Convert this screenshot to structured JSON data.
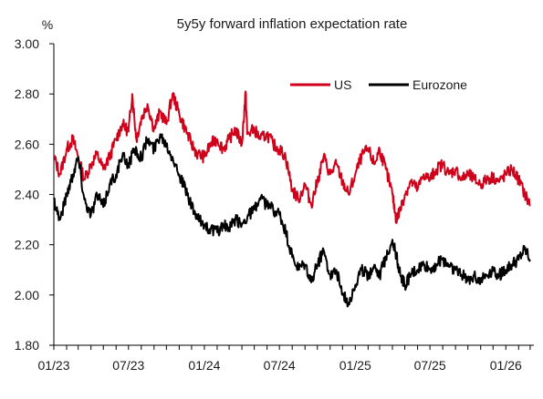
{
  "chart_data": {
    "type": "line",
    "title": "5y5y forward inflation expectation rate",
    "ylabel": "%",
    "xlabel": "",
    "ylim": [
      1.8,
      3.0
    ],
    "yticks": [
      "3.00",
      "2.80",
      "2.60",
      "2.40",
      "2.20",
      "2.00",
      "1.80"
    ],
    "xtick_labels": [
      "01/23",
      "07/23",
      "01/24",
      "07/24",
      "01/25",
      "07/25",
      "01/26"
    ],
    "legend_position": "top-right",
    "grid": false,
    "series": [
      {
        "name": "US",
        "color": "#d0021b",
        "points": [
          [
            "2023-01-01",
            2.55
          ],
          [
            "2023-01-16",
            2.48
          ],
          [
            "2023-02-01",
            2.58
          ],
          [
            "2023-02-16",
            2.62
          ],
          [
            "2023-03-01",
            2.55
          ],
          [
            "2023-03-16",
            2.46
          ],
          [
            "2023-04-01",
            2.52
          ],
          [
            "2023-04-16",
            2.56
          ],
          [
            "2023-05-01",
            2.5
          ],
          [
            "2023-05-16",
            2.55
          ],
          [
            "2023-06-01",
            2.62
          ],
          [
            "2023-06-16",
            2.68
          ],
          [
            "2023-07-01",
            2.65
          ],
          [
            "2023-07-10",
            2.8
          ],
          [
            "2023-07-20",
            2.62
          ],
          [
            "2023-08-01",
            2.7
          ],
          [
            "2023-08-16",
            2.76
          ],
          [
            "2023-09-01",
            2.66
          ],
          [
            "2023-09-16",
            2.73
          ],
          [
            "2023-10-01",
            2.68
          ],
          [
            "2023-10-16",
            2.8
          ],
          [
            "2023-11-01",
            2.72
          ],
          [
            "2023-11-16",
            2.66
          ],
          [
            "2023-12-01",
            2.6
          ],
          [
            "2023-12-16",
            2.56
          ],
          [
            "2024-01-01",
            2.55
          ],
          [
            "2024-01-16",
            2.6
          ],
          [
            "2024-02-01",
            2.62
          ],
          [
            "2024-02-16",
            2.58
          ],
          [
            "2024-03-01",
            2.62
          ],
          [
            "2024-03-16",
            2.66
          ],
          [
            "2024-04-01",
            2.6
          ],
          [
            "2024-04-10",
            2.81
          ],
          [
            "2024-04-14",
            2.64
          ],
          [
            "2024-05-01",
            2.66
          ],
          [
            "2024-05-16",
            2.62
          ],
          [
            "2024-06-01",
            2.64
          ],
          [
            "2024-06-16",
            2.6
          ],
          [
            "2024-07-01",
            2.58
          ],
          [
            "2024-07-16",
            2.55
          ],
          [
            "2024-08-01",
            2.42
          ],
          [
            "2024-08-16",
            2.38
          ],
          [
            "2024-09-01",
            2.44
          ],
          [
            "2024-09-16",
            2.36
          ],
          [
            "2024-10-01",
            2.45
          ],
          [
            "2024-10-16",
            2.55
          ],
          [
            "2024-11-01",
            2.48
          ],
          [
            "2024-11-16",
            2.52
          ],
          [
            "2024-12-01",
            2.45
          ],
          [
            "2024-12-16",
            2.4
          ],
          [
            "2025-01-01",
            2.48
          ],
          [
            "2025-01-16",
            2.55
          ],
          [
            "2025-02-01",
            2.58
          ],
          [
            "2025-02-16",
            2.52
          ],
          [
            "2025-03-01",
            2.58
          ],
          [
            "2025-03-16",
            2.5
          ],
          [
            "2025-04-01",
            2.4
          ],
          [
            "2025-04-10",
            2.3
          ],
          [
            "2025-04-20",
            2.34
          ],
          [
            "2025-05-01",
            2.4
          ],
          [
            "2025-05-16",
            2.45
          ],
          [
            "2025-06-01",
            2.42
          ],
          [
            "2025-06-16",
            2.48
          ],
          [
            "2025-07-01",
            2.46
          ],
          [
            "2025-07-16",
            2.5
          ],
          [
            "2025-08-01",
            2.52
          ],
          [
            "2025-08-16",
            2.48
          ],
          [
            "2025-09-01",
            2.5
          ],
          [
            "2025-09-16",
            2.46
          ],
          [
            "2025-10-01",
            2.48
          ],
          [
            "2025-10-16",
            2.46
          ],
          [
            "2025-11-01",
            2.44
          ],
          [
            "2025-11-16",
            2.46
          ],
          [
            "2025-12-01",
            2.47
          ],
          [
            "2025-12-16",
            2.45
          ],
          [
            "2026-01-01",
            2.48
          ],
          [
            "2026-01-16",
            2.5
          ],
          [
            "2026-02-01",
            2.46
          ],
          [
            "2026-02-16",
            2.4
          ],
          [
            "2026-03-01",
            2.36
          ]
        ]
      },
      {
        "name": "Eurozone",
        "color": "#000000",
        "points": [
          [
            "2023-01-01",
            2.38
          ],
          [
            "2023-01-16",
            2.3
          ],
          [
            "2023-02-01",
            2.4
          ],
          [
            "2023-02-16",
            2.48
          ],
          [
            "2023-03-01",
            2.55
          ],
          [
            "2023-03-16",
            2.38
          ],
          [
            "2023-04-01",
            2.32
          ],
          [
            "2023-04-16",
            2.4
          ],
          [
            "2023-05-01",
            2.35
          ],
          [
            "2023-05-16",
            2.44
          ],
          [
            "2023-06-01",
            2.48
          ],
          [
            "2023-06-16",
            2.55
          ],
          [
            "2023-07-01",
            2.52
          ],
          [
            "2023-07-16",
            2.58
          ],
          [
            "2023-08-01",
            2.55
          ],
          [
            "2023-08-16",
            2.62
          ],
          [
            "2023-09-01",
            2.58
          ],
          [
            "2023-09-16",
            2.64
          ],
          [
            "2023-10-01",
            2.6
          ],
          [
            "2023-10-16",
            2.55
          ],
          [
            "2023-11-01",
            2.48
          ],
          [
            "2023-11-16",
            2.42
          ],
          [
            "2023-12-01",
            2.35
          ],
          [
            "2023-12-16",
            2.3
          ],
          [
            "2024-01-01",
            2.28
          ],
          [
            "2024-01-16",
            2.26
          ],
          [
            "2024-02-01",
            2.25
          ],
          [
            "2024-02-16",
            2.28
          ],
          [
            "2024-03-01",
            2.26
          ],
          [
            "2024-03-16",
            2.3
          ],
          [
            "2024-04-01",
            2.28
          ],
          [
            "2024-04-16",
            2.32
          ],
          [
            "2024-05-01",
            2.34
          ],
          [
            "2024-05-16",
            2.38
          ],
          [
            "2024-06-01",
            2.36
          ],
          [
            "2024-06-16",
            2.34
          ],
          [
            "2024-07-01",
            2.32
          ],
          [
            "2024-07-16",
            2.25
          ],
          [
            "2024-08-01",
            2.15
          ],
          [
            "2024-08-16",
            2.1
          ],
          [
            "2024-09-01",
            2.12
          ],
          [
            "2024-09-16",
            2.05
          ],
          [
            "2024-10-01",
            2.12
          ],
          [
            "2024-10-16",
            2.18
          ],
          [
            "2024-11-01",
            2.08
          ],
          [
            "2024-11-16",
            2.1
          ],
          [
            "2024-12-01",
            2.0
          ],
          [
            "2024-12-16",
            1.97
          ],
          [
            "2025-01-01",
            2.04
          ],
          [
            "2025-01-16",
            2.1
          ],
          [
            "2025-02-01",
            2.08
          ],
          [
            "2025-02-16",
            2.12
          ],
          [
            "2025-03-01",
            2.08
          ],
          [
            "2025-03-16",
            2.15
          ],
          [
            "2025-04-01",
            2.22
          ],
          [
            "2025-04-10",
            2.16
          ],
          [
            "2025-04-20",
            2.08
          ],
          [
            "2025-05-01",
            2.04
          ],
          [
            "2025-05-16",
            2.08
          ],
          [
            "2025-06-01",
            2.1
          ],
          [
            "2025-06-16",
            2.12
          ],
          [
            "2025-07-01",
            2.1
          ],
          [
            "2025-07-16",
            2.12
          ],
          [
            "2025-08-01",
            2.14
          ],
          [
            "2025-08-16",
            2.12
          ],
          [
            "2025-09-01",
            2.1
          ],
          [
            "2025-09-16",
            2.08
          ],
          [
            "2025-10-01",
            2.06
          ],
          [
            "2025-10-16",
            2.08
          ],
          [
            "2025-11-01",
            2.06
          ],
          [
            "2025-11-16",
            2.08
          ],
          [
            "2025-12-01",
            2.1
          ],
          [
            "2025-12-16",
            2.08
          ],
          [
            "2026-01-01",
            2.1
          ],
          [
            "2026-01-16",
            2.12
          ],
          [
            "2026-02-01",
            2.14
          ],
          [
            "2026-02-16",
            2.18
          ],
          [
            "2026-03-01",
            2.14
          ]
        ]
      }
    ]
  }
}
